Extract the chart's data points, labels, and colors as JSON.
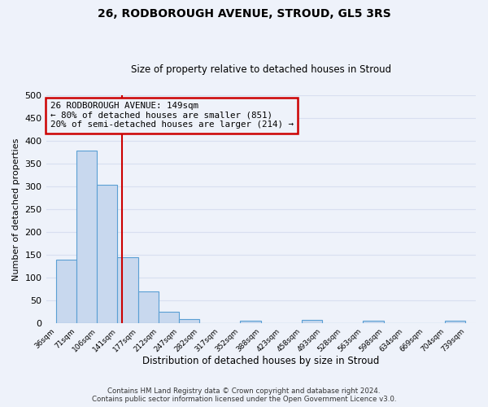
{
  "title1": "26, RODBOROUGH AVENUE, STROUD, GL5 3RS",
  "title2": "Size of property relative to detached houses in Stroud",
  "xlabel": "Distribution of detached houses by size in Stroud",
  "ylabel": "Number of detached properties",
  "bin_edges": [
    36,
    71,
    106,
    141,
    177,
    212,
    247,
    282,
    317,
    352,
    388,
    423,
    458,
    493,
    528,
    563,
    598,
    634,
    669,
    704,
    739
  ],
  "bin_labels": [
    "36sqm",
    "71sqm",
    "106sqm",
    "141sqm",
    "177sqm",
    "212sqm",
    "247sqm",
    "282sqm",
    "317sqm",
    "352sqm",
    "388sqm",
    "423sqm",
    "458sqm",
    "493sqm",
    "528sqm",
    "563sqm",
    "598sqm",
    "634sqm",
    "669sqm",
    "704sqm",
    "739sqm"
  ],
  "bar_values": [
    140,
    378,
    304,
    144,
    70,
    25,
    10,
    0,
    0,
    5,
    0,
    0,
    8,
    0,
    0,
    5,
    0,
    0,
    0,
    5
  ],
  "bar_color": "#c8d8ee",
  "bar_edgecolor": "#5a9fd4",
  "vline_value": 149,
  "vline_color": "#cc0000",
  "annotation_text": "26 RODBOROUGH AVENUE: 149sqm\n← 80% of detached houses are smaller (851)\n20% of semi-detached houses are larger (214) →",
  "annotation_box_edgecolor": "#cc0000",
  "ylim": [
    0,
    500
  ],
  "yticks": [
    0,
    50,
    100,
    150,
    200,
    250,
    300,
    350,
    400,
    450,
    500
  ],
  "footer_line1": "Contains HM Land Registry data © Crown copyright and database right 2024.",
  "footer_line2": "Contains public sector information licensed under the Open Government Licence v3.0.",
  "background_color": "#eef2fa",
  "grid_color": "#d8dff0"
}
